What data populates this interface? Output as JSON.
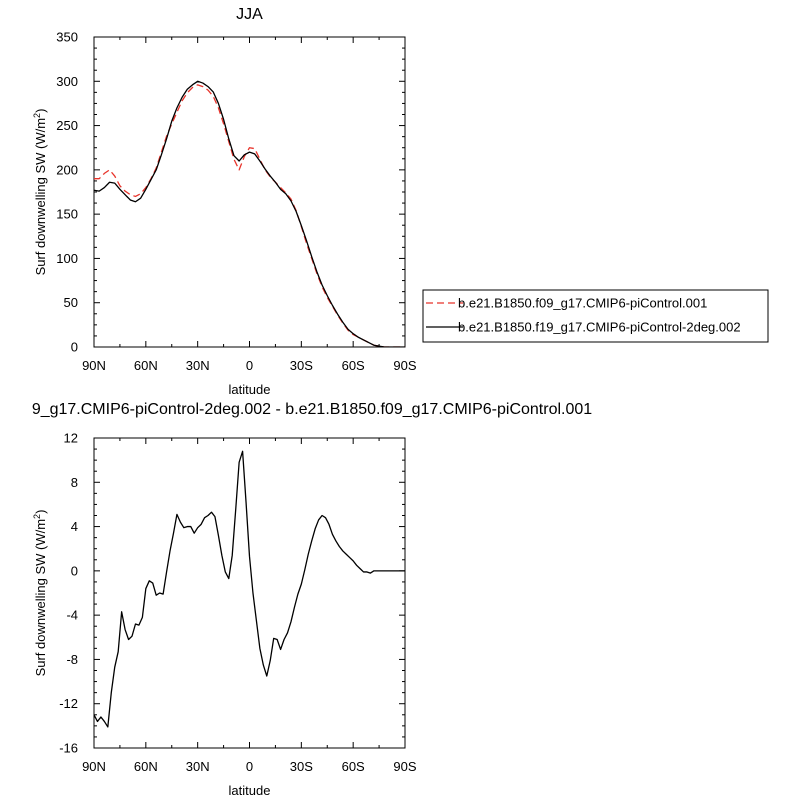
{
  "chart_data": [
    {
      "type": "line",
      "title": "JJA",
      "xlabel": "latitude",
      "ylabel": "Surf downwelling SW (W/m²)",
      "ylabel_main": "Surf downwelling SW (W/m",
      "ylabel_sup": "2",
      "ylabel_end": ")",
      "xlim": [
        90,
        -90
      ],
      "ylim": [
        0,
        350
      ],
      "x_ticks": [
        90,
        60,
        30,
        0,
        -30,
        -60,
        -90
      ],
      "x_tick_labels": [
        "90N",
        "60N",
        "30N",
        "0",
        "30S",
        "60S",
        "90S"
      ],
      "y_ticks": [
        0,
        50,
        100,
        150,
        200,
        250,
        300,
        350
      ],
      "y_tick_labels": [
        "0",
        "50",
        "100",
        "150",
        "200",
        "250",
        "300",
        "350"
      ],
      "legend": "right",
      "series": [
        {
          "name": "b.e21.B1850.f09_g17.CMIP6-piControl.001",
          "color": "#e8332a",
          "dash": "dashed",
          "x": [
            90,
            87,
            84,
            81,
            78,
            75,
            72,
            69,
            66,
            63,
            60,
            57,
            54,
            51,
            48,
            45,
            42,
            39,
            36,
            33,
            30,
            27,
            24,
            21,
            18,
            15,
            12,
            9,
            6,
            3,
            0,
            -3,
            -6,
            -9,
            -12,
            -15,
            -18,
            -21,
            -24,
            -27,
            -30,
            -33,
            -36,
            -39,
            -42,
            -45,
            -48,
            -51,
            -54,
            -57,
            -60,
            -63,
            -66,
            -69,
            -72,
            -75,
            -78,
            -81,
            -84,
            -87,
            -90
          ],
          "y": [
            190,
            190,
            196,
            200,
            193,
            182,
            176,
            172,
            170,
            173,
            180,
            190,
            202,
            220,
            238,
            252,
            265,
            278,
            287,
            293,
            296,
            294,
            290,
            283,
            270,
            252,
            232,
            212,
            200,
            215,
            225,
            224,
            212,
            200,
            192,
            186,
            180,
            174,
            167,
            154,
            136,
            117,
            100,
            83,
            68,
            56,
            46,
            36,
            27,
            19,
            14,
            11,
            8,
            5,
            2,
            1,
            0,
            0,
            0,
            0,
            0
          ]
        },
        {
          "name": "b.e21.B1850.f19_g17.CMIP6-piControl-2deg.002",
          "color": "#000000",
          "dash": "solid",
          "x": [
            90,
            87,
            84,
            81,
            78,
            75,
            72,
            69,
            66,
            63,
            60,
            57,
            54,
            51,
            48,
            45,
            42,
            39,
            36,
            33,
            30,
            27,
            24,
            21,
            18,
            15,
            12,
            9,
            6,
            3,
            0,
            -3,
            -6,
            -9,
            -12,
            -15,
            -18,
            -21,
            -24,
            -27,
            -30,
            -33,
            -36,
            -39,
            -42,
            -45,
            -48,
            -51,
            -54,
            -57,
            -60,
            -63,
            -66,
            -69,
            -72,
            -75,
            -78,
            -81,
            -84,
            -87,
            -90
          ],
          "y": [
            177,
            176,
            180,
            186,
            185,
            178,
            172,
            166,
            164,
            168,
            178,
            189,
            200,
            217,
            235,
            255,
            270,
            282,
            291,
            296,
            300,
            298,
            294,
            288,
            275,
            257,
            235,
            216,
            210,
            217,
            220,
            218,
            210,
            201,
            193,
            186,
            178,
            173,
            165,
            153,
            137,
            120,
            102,
            85,
            70,
            58,
            47,
            37,
            28,
            20,
            15,
            11,
            8,
            5,
            2,
            1,
            0,
            0,
            0,
            0,
            0
          ]
        }
      ]
    },
    {
      "type": "line",
      "title": "9_g17.CMIP6-piControl-2deg.002 - b.e21.B1850.f09_g17.CMIP6-piControl.001",
      "xlabel": "latitude",
      "ylabel": "Surf downwelling SW (W/m²)",
      "ylabel_main": "Surf downwelling SW (W/m",
      "ylabel_sup": "2",
      "ylabel_end": ")",
      "xlim": [
        90,
        -90
      ],
      "ylim": [
        -16,
        12
      ],
      "x_ticks": [
        90,
        60,
        30,
        0,
        -30,
        -60,
        -90
      ],
      "x_tick_labels": [
        "90N",
        "60N",
        "30N",
        "0",
        "30S",
        "60S",
        "90S"
      ],
      "y_ticks": [
        -16,
        -12,
        -8,
        -4,
        0,
        4,
        8,
        12
      ],
      "y_tick_labels": [
        "-16",
        "-12",
        "-8",
        "-4",
        "0",
        "4",
        "8",
        "12"
      ],
      "series": [
        {
          "color": "#000000",
          "dash": "solid",
          "x": [
            90,
            88,
            86,
            84,
            82,
            80,
            78,
            76,
            74,
            72,
            70,
            68,
            66,
            64,
            62,
            60,
            58,
            56,
            54,
            52,
            50,
            48,
            46,
            44,
            42,
            40,
            38,
            36,
            34,
            32,
            30,
            28,
            26,
            24,
            22,
            20,
            18,
            16,
            14,
            12,
            10,
            8,
            6,
            4,
            2,
            0,
            -2,
            -4,
            -6,
            -8,
            -10,
            -12,
            -14,
            -16,
            -18,
            -20,
            -22,
            -24,
            -26,
            -28,
            -30,
            -32,
            -34,
            -36,
            -38,
            -40,
            -42,
            -44,
            -46,
            -48,
            -50,
            -52,
            -54,
            -56,
            -58,
            -60,
            -62,
            -64,
            -66,
            -68,
            -70,
            -72,
            -74,
            -76,
            -78,
            -80,
            -82,
            -84,
            -86,
            -88,
            -90
          ],
          "y": [
            -13.0,
            -13.6,
            -13.2,
            -13.6,
            -14.1,
            -11.0,
            -8.7,
            -7.3,
            -3.7,
            -5.3,
            -6.2,
            -5.9,
            -4.8,
            -4.9,
            -4.2,
            -1.6,
            -0.9,
            -1.1,
            -2.2,
            -2.0,
            -2.1,
            -0.1,
            1.8,
            3.4,
            5.1,
            4.4,
            3.9,
            4.0,
            4.0,
            3.4,
            3.9,
            4.2,
            4.8,
            5.0,
            5.3,
            4.9,
            3.2,
            1.4,
            -0.1,
            -0.7,
            1.4,
            5.5,
            9.8,
            10.8,
            6.2,
            1.3,
            -2.0,
            -4.5,
            -7.0,
            -8.5,
            -9.5,
            -8.1,
            -6.1,
            -6.2,
            -7.1,
            -6.2,
            -5.6,
            -4.6,
            -3.3,
            -2.1,
            -1.2,
            0.1,
            1.5,
            2.7,
            3.8,
            4.6,
            5.0,
            4.8,
            4.2,
            3.3,
            2.7,
            2.2,
            1.8,
            1.5,
            1.2,
            0.9,
            0.5,
            0.2,
            -0.1,
            -0.1,
            -0.2,
            0.0,
            0.0,
            0.0,
            0.0,
            0.0,
            0.0,
            0.0,
            0.0,
            0.0,
            0.0
          ]
        }
      ]
    }
  ]
}
